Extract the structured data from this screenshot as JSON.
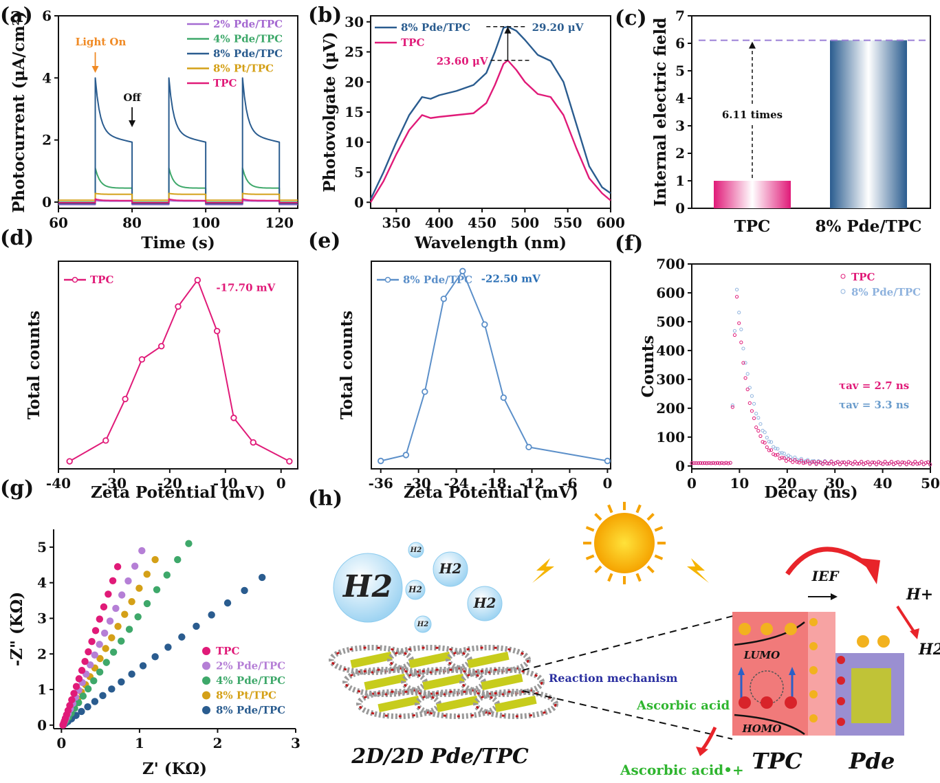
{
  "chart_data": [
    {
      "panel": "(a)",
      "type": "line",
      "xlabel": "Time (s)",
      "ylabel": "Photocurrent (μA/cm²)",
      "xlim": [
        60,
        125
      ],
      "ylim": [
        -0.2,
        6
      ],
      "xticks": [
        "60",
        "80",
        "100",
        "120"
      ],
      "yticks": [
        "0",
        "2",
        "4",
        "6"
      ],
      "legend_position": "top-right",
      "on_windows": [
        [
          70,
          80
        ],
        [
          90,
          100
        ],
        [
          110,
          120
        ]
      ],
      "series": [
        {
          "name": "2% Pde/TPC",
          "color": "#a56ad1",
          "off": -0.08,
          "peak": 0.05,
          "plateau": 0.03
        },
        {
          "name": "4% Pde/TPC",
          "color": "#3ea86a",
          "off": 0.0,
          "peak": 1.1,
          "plateau": 0.45
        },
        {
          "name": "8% Pde/TPC",
          "color": "#2a5c8f",
          "off": -0.05,
          "peak": 4.0,
          "plateau": 2.2
        },
        {
          "name": "8% Pt/TPC",
          "color": "#d4a017",
          "off": 0.06,
          "peak": 0.28,
          "plateau": 0.25
        },
        {
          "name": "TPC",
          "color": "#e01a78",
          "off": -0.02,
          "peak": 0.1,
          "plateau": 0.05
        }
      ],
      "annotations": [
        {
          "text": "Light On",
          "x": 70,
          "y": 5.0,
          "color": "#f08a24"
        },
        {
          "text": "Off",
          "x": 80,
          "y": 3.2,
          "color": "#111111"
        }
      ]
    },
    {
      "panel": "(b)",
      "type": "line",
      "xlabel": "Wavelength (nm)",
      "ylabel": "Photovolgate (μV)",
      "xlim": [
        320,
        600
      ],
      "ylim": [
        -1,
        31
      ],
      "xticks": [
        "350",
        "400",
        "450",
        "500",
        "550",
        "600"
      ],
      "yticks": [
        "0",
        "5",
        "10",
        "15",
        "20",
        "25",
        "30"
      ],
      "legend_position": "top-left",
      "series": [
        {
          "name": "8% Pde/TPC",
          "color": "#2a5c8f",
          "x": [
            320,
            335,
            350,
            365,
            380,
            390,
            400,
            420,
            440,
            455,
            465,
            475,
            480,
            490,
            500,
            515,
            530,
            545,
            560,
            575,
            590,
            600
          ],
          "y": [
            0.5,
            5,
            10,
            14.5,
            17.5,
            17.2,
            17.8,
            18.5,
            19.5,
            21.5,
            25,
            29,
            29.2,
            28.5,
            27,
            24.5,
            23.5,
            20,
            13,
            6,
            2.5,
            1.5
          ]
        },
        {
          "name": "TPC",
          "color": "#e01a78",
          "x": [
            320,
            335,
            350,
            365,
            380,
            390,
            400,
            420,
            440,
            455,
            465,
            475,
            480,
            490,
            500,
            515,
            530,
            545,
            560,
            575,
            590,
            600
          ],
          "y": [
            0,
            3.5,
            8,
            12,
            14.5,
            14,
            14.2,
            14.5,
            14.8,
            16.5,
            19.5,
            23,
            23.6,
            22,
            20,
            18,
            17.5,
            14.5,
            9,
            4,
            1.5,
            0.3
          ]
        }
      ],
      "annotations": [
        {
          "text": "29.20 μV",
          "x": 480,
          "y": 29.2,
          "color": "#2a5c8f"
        },
        {
          "text": "23.60 μV",
          "x": 480,
          "y": 23.6,
          "color": "#e01a78"
        }
      ]
    },
    {
      "panel": "(c)",
      "type": "bar",
      "ylabel": "Internal electric field",
      "ylim": [
        0,
        7
      ],
      "yticks": [
        "0",
        "1",
        "2",
        "3",
        "4",
        "5",
        "6",
        "7"
      ],
      "categories": [
        "TPC",
        "8% Pde/TPC"
      ],
      "values": [
        1,
        6.11
      ],
      "colors": [
        "#e01a78",
        "#2a5c8f"
      ],
      "annotations": [
        {
          "text": "6.11 times"
        }
      ]
    },
    {
      "panel": "(d)",
      "type": "line",
      "xlabel": "Zeta Potential (mV)",
      "ylabel": "Total counts",
      "xlim": [
        -40,
        3
      ],
      "ylim": [
        0,
        1.1
      ],
      "xticks": [
        "-40",
        "-30",
        "-20",
        "-10",
        "0"
      ],
      "legend_position": "top-left",
      "series": [
        {
          "name": "TPC",
          "color": "#e01a78",
          "x": [
            -38,
            -31.5,
            -28,
            -25,
            -21.5,
            -18.5,
            -15,
            -11.5,
            -8.5,
            -5,
            1.5
          ],
          "y": [
            0.04,
            0.15,
            0.37,
            0.58,
            0.65,
            0.86,
            1.0,
            0.73,
            0.27,
            0.14,
            0.04
          ]
        }
      ],
      "annotations": [
        {
          "text": "-17.70 mV",
          "x": -15,
          "y": 1.0,
          "color": "#e01a78"
        }
      ]
    },
    {
      "panel": "(e)",
      "type": "line",
      "xlabel": "Zeta Potential (mV)",
      "ylabel": "Total counts",
      "xlim": [
        -37.5,
        0.5
      ],
      "ylim": [
        0,
        1.05
      ],
      "xticks": [
        "-36",
        "-30",
        "-24",
        "-18",
        "-12",
        "-6",
        "0"
      ],
      "legend_position": "top-left",
      "series": [
        {
          "name": "8% Pde/TPC",
          "color": "#5b8fc9",
          "x": [
            -36,
            -32,
            -29,
            -26,
            -23,
            -19.5,
            -16.5,
            -12.5,
            0
          ],
          "y": [
            0.04,
            0.07,
            0.39,
            0.86,
            1.0,
            0.73,
            0.36,
            0.11,
            0.04
          ]
        }
      ],
      "annotations": [
        {
          "text": "-22.50 mV",
          "x": -23,
          "y": 1.0,
          "color": "#2a6fb5"
        }
      ]
    },
    {
      "panel": "(f)",
      "type": "scatter",
      "xlabel": "Decay (ns)",
      "ylabel": "Counts",
      "xlim": [
        0,
        50
      ],
      "ylim": [
        -10,
        700
      ],
      "xticks": [
        "0",
        "10",
        "20",
        "30",
        "40",
        "50"
      ],
      "yticks": [
        "0",
        "100",
        "200",
        "300",
        "400",
        "500",
        "600",
        "700"
      ],
      "legend_position": "top-right",
      "series": [
        {
          "name": "TPC",
          "color": "#e01a78",
          "tau": 2.7,
          "peak": 620
        },
        {
          "name": "8% Pde/TPC",
          "color": "#8fb3de",
          "tau": 3.3,
          "peak": 640
        }
      ],
      "annotations": [
        {
          "text": "τav = 2.7 ns",
          "color": "#e01a78"
        },
        {
          "text": "τav = 3.3 ns",
          "color": "#6a9ccc"
        }
      ]
    },
    {
      "panel": "(g)",
      "type": "scatter",
      "xlabel": "Z' (KΩ)",
      "ylabel": "-Z\" (KΩ)",
      "xlim": [
        -0.1,
        3
      ],
      "ylim": [
        -0.1,
        5.5
      ],
      "xticks": [
        "0",
        "1",
        "2",
        "3"
      ],
      "yticks": [
        "0",
        "1",
        "2",
        "3",
        "4",
        "5"
      ],
      "legend_position": "bottom-right",
      "series": [
        {
          "name": "TPC",
          "color": "#e01a78",
          "end_x": 0.72,
          "end_y": 4.45
        },
        {
          "name": "2% Pde/TPC",
          "color": "#b57fd6",
          "end_x": 1.03,
          "end_y": 4.9
        },
        {
          "name": "4% Pde/TPC",
          "color": "#3ea86a",
          "end_x": 1.63,
          "end_y": 5.1
        },
        {
          "name": "8% Pt/TPC",
          "color": "#d4a017",
          "end_x": 1.2,
          "end_y": 4.65
        },
        {
          "name": "8% Pde/TPC",
          "color": "#2a5c8f",
          "end_x": 2.57,
          "end_y": 4.15
        }
      ]
    }
  ],
  "panel_labels": {
    "a": "(a)",
    "b": "(b)",
    "c": "(c)",
    "d": "(d)",
    "e": "(e)",
    "f": "(f)",
    "g": "(g)",
    "h": "(h)"
  },
  "schematic": {
    "h2_labels": [
      "H2",
      "H2",
      "H2",
      "H2",
      "H2",
      "H2"
    ],
    "caption_left": "2D/2D Pde/TPC",
    "reaction_mechanism": "Reaction mechanism",
    "ascorbic_acid": "Ascorbic acid",
    "ascorbic_acid_ox": "Ascorbic acid•+",
    "ief": "IEF",
    "lumo": "LUMO",
    "homo": "HOMO",
    "h_plus": "H+",
    "h2_product": "H2",
    "tpc": "TPC",
    "pde": "Pde",
    "sun_color": "#f5a300",
    "tpc_color": "#f06b6b",
    "pde_color": "#9a8fd1"
  }
}
